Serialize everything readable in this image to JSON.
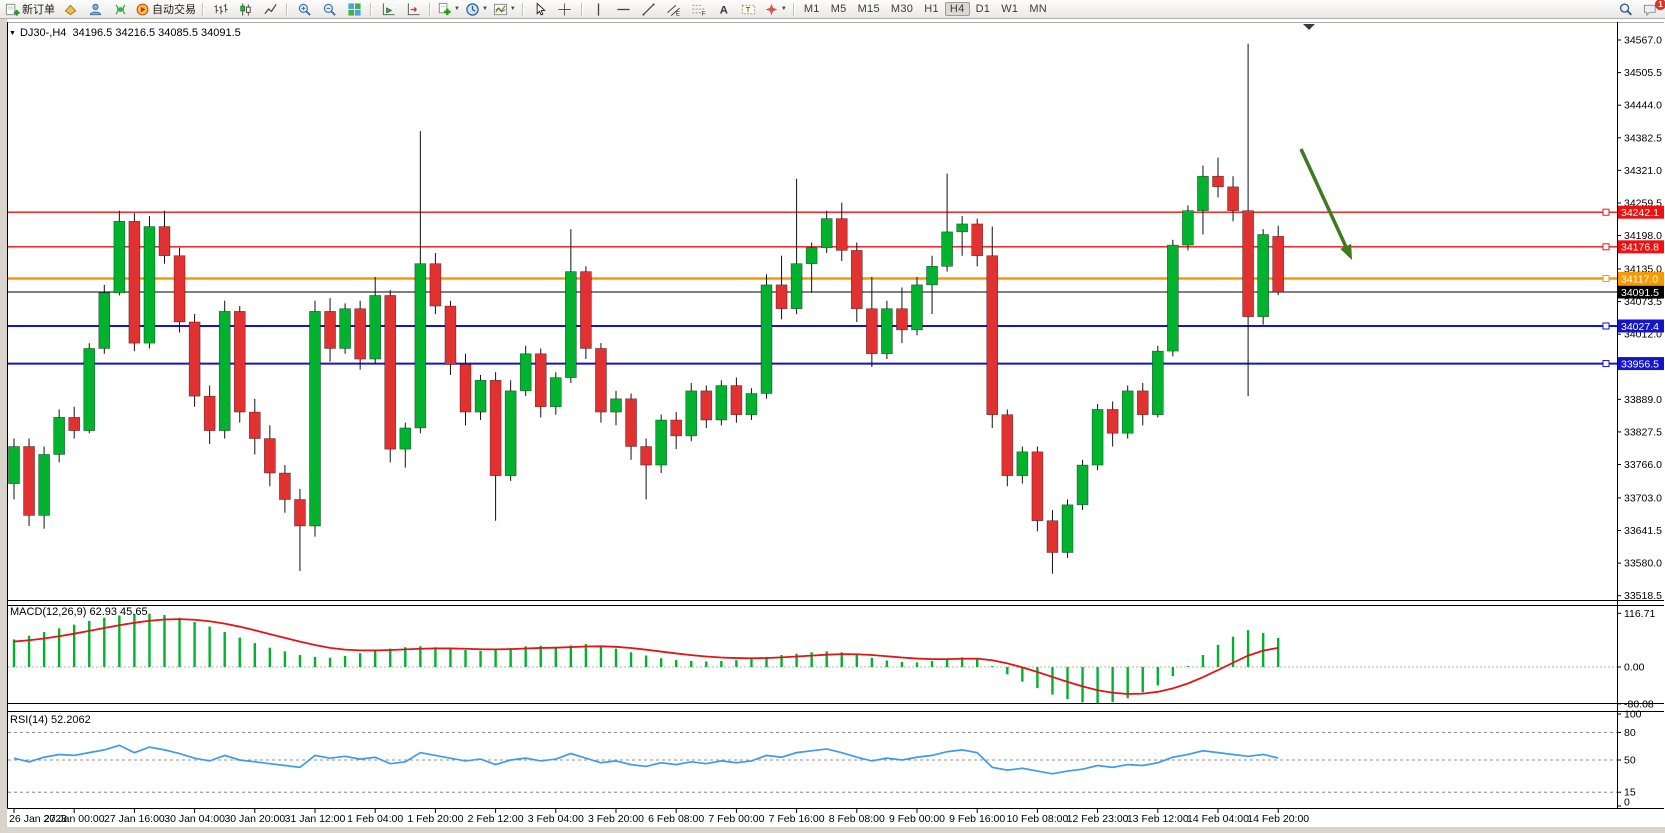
{
  "toolbar": {
    "notification_count": "1",
    "items": [
      {
        "type": "btn",
        "name": "new-order-button",
        "icon": "new-order",
        "label": "新订单"
      },
      {
        "type": "btn",
        "name": "market-watch-button",
        "icon": "market-watch"
      },
      {
        "type": "btn",
        "name": "navigator-button",
        "icon": "navigator"
      },
      {
        "type": "btn",
        "name": "signal-button",
        "icon": "signal"
      },
      {
        "type": "btn",
        "name": "autotrading-button",
        "icon": "autotrading",
        "label": "自动交易"
      },
      {
        "type": "sep"
      },
      {
        "type": "btn",
        "name": "bar-chart-button",
        "icon": "bar-chart"
      },
      {
        "type": "btn",
        "name": "candlestick-chart-button",
        "icon": "candlestick"
      },
      {
        "type": "btn",
        "name": "line-chart-button",
        "icon": "line-chart"
      },
      {
        "type": "sep"
      },
      {
        "type": "btn",
        "name": "zoom-in-button",
        "icon": "zoom-in"
      },
      {
        "type": "btn",
        "name": "zoom-out-button",
        "icon": "zoom-out"
      },
      {
        "type": "btn",
        "name": "tile-windows-button",
        "icon": "tile-windows"
      },
      {
        "type": "sep"
      },
      {
        "type": "btn",
        "name": "auto-scroll-button",
        "icon": "auto-scroll"
      },
      {
        "type": "btn",
        "name": "chart-shift-button",
        "icon": "chart-shift"
      },
      {
        "type": "sep"
      },
      {
        "type": "btn",
        "name": "indicators-button",
        "icon": "indicators",
        "caret": true
      },
      {
        "type": "btn",
        "name": "periods-button",
        "icon": "periods",
        "caret": true
      },
      {
        "type": "btn",
        "name": "templates-button",
        "icon": "templates",
        "caret": true
      },
      {
        "type": "sep"
      },
      {
        "type": "btn",
        "name": "cursor-button",
        "icon": "cursor"
      },
      {
        "type": "btn",
        "name": "crosshair-button",
        "icon": "crosshair"
      },
      {
        "type": "sep"
      },
      {
        "type": "btn",
        "name": "vertical-line-button",
        "icon": "vline"
      },
      {
        "type": "btn",
        "name": "horizontal-line-button",
        "icon": "hline"
      },
      {
        "type": "btn",
        "name": "trendline-button",
        "icon": "trendline"
      },
      {
        "type": "btn",
        "name": "equidistant-channel-button",
        "icon": "channel"
      },
      {
        "type": "btn",
        "name": "fibonacci-button",
        "icon": "fibo"
      },
      {
        "type": "btn",
        "name": "text-button",
        "icon": "text-a"
      },
      {
        "type": "btn",
        "name": "text-label-button",
        "icon": "text-label"
      },
      {
        "type": "btn",
        "name": "arrows-button",
        "icon": "arrows",
        "caret": true
      },
      {
        "type": "sep"
      },
      {
        "type": "tf",
        "label": "M1"
      },
      {
        "type": "tf",
        "label": "M5"
      },
      {
        "type": "tf",
        "label": "M15"
      },
      {
        "type": "tf",
        "label": "M30"
      },
      {
        "type": "tf",
        "label": "H1"
      },
      {
        "type": "tf",
        "label": "H4",
        "active": true
      },
      {
        "type": "tf",
        "label": "D1"
      },
      {
        "type": "tf",
        "label": "W1"
      },
      {
        "type": "tf",
        "label": "MN"
      },
      {
        "type": "spacer"
      },
      {
        "type": "btn",
        "name": "search-button",
        "icon": "search"
      },
      {
        "type": "btn",
        "name": "notifications-button",
        "icon": "notification",
        "badge": "1"
      }
    ]
  },
  "chart_data": {
    "type": "candlestick",
    "title": "DJ30-,H4",
    "title_caret": "▼",
    "title_ohlc": "34196.5 34216.5 34085.5 34091.5",
    "last_ohlc": {
      "open": 34196.5,
      "high": 34216.5,
      "low": 34085.5,
      "close": 34091.5
    },
    "last_price": 34091.5,
    "grid": false,
    "price_ticks": [
      34567.0,
      34505.5,
      34444.0,
      34382.5,
      34321.0,
      34259.5,
      34198.0,
      34135.0,
      34073.5,
      34012.0,
      33950.5,
      33889.0,
      33827.5,
      33766.0,
      33703.0,
      33641.5,
      33580.0,
      33518.5
    ],
    "time_labels": [
      "26 Jan 2023",
      "27 Jan 00:00",
      "27 Jan 16:00",
      "30 Jan 04:00",
      "30 Jan 20:00",
      "31 Jan 12:00",
      "1 Feb 04:00",
      "1 Feb 20:00",
      "2 Feb 12:00",
      "3 Feb 04:00",
      "3 Feb 20:00",
      "6 Feb 08:00",
      "7 Feb 00:00",
      "7 Feb 16:00",
      "8 Feb 08:00",
      "9 Feb 00:00",
      "9 Feb 16:00",
      "10 Feb 08:00",
      "12 Feb 23:00",
      "13 Feb 12:00",
      "14 Feb 04:00",
      "14 Feb 20:00"
    ],
    "candles_per_label": 4,
    "horizontal_lines": [
      {
        "price": 34242.1,
        "color": "#ee1111",
        "width": 1.4
      },
      {
        "price": 34176.8,
        "color": "#ee1111",
        "width": 1.4
      },
      {
        "price": 34117.0,
        "color": "#f59a00",
        "width": 2.4
      },
      {
        "price": 34027.4,
        "color": "#1414c8",
        "width": 2
      },
      {
        "price": 33956.5,
        "color": "#1414c8",
        "width": 2
      }
    ],
    "bid_line": {
      "price": 34091.5,
      "color": "#000000"
    },
    "annotation_arrow": {
      "from": [
        1301,
        149
      ],
      "to": [
        1352,
        260
      ],
      "color": "#3e7a1f"
    },
    "colors": {
      "up": "#00b22d",
      "down": "#e23131",
      "wick": "#111111",
      "axis_text": "#000000"
    },
    "candles": [
      [
        33730,
        33815,
        33700,
        33800
      ],
      [
        33800,
        33815,
        33650,
        33670
      ],
      [
        33670,
        33800,
        33645,
        33785
      ],
      [
        33785,
        33870,
        33770,
        33855
      ],
      [
        33855,
        33875,
        33815,
        33830
      ],
      [
        33830,
        33995,
        33825,
        33985
      ],
      [
        33985,
        34105,
        33975,
        34090
      ],
      [
        34090,
        34245,
        34085,
        34225
      ],
      [
        34225,
        34240,
        33980,
        33995
      ],
      [
        33995,
        34235,
        33985,
        34215
      ],
      [
        34215,
        34245,
        34145,
        34160
      ],
      [
        34160,
        34175,
        34015,
        34035
      ],
      [
        34035,
        34050,
        33875,
        33895
      ],
      [
        33895,
        33915,
        33805,
        33830
      ],
      [
        33830,
        34075,
        33815,
        34055
      ],
      [
        34055,
        34065,
        33845,
        33865
      ],
      [
        33865,
        33890,
        33785,
        33815
      ],
      [
        33815,
        33840,
        33725,
        33750
      ],
      [
        33750,
        33765,
        33675,
        33700
      ],
      [
        33700,
        33720,
        33565,
        33650
      ],
      [
        33650,
        34075,
        33630,
        34055
      ],
      [
        34055,
        34080,
        33960,
        33985
      ],
      [
        33985,
        34070,
        33975,
        34060
      ],
      [
        34060,
        34075,
        33945,
        33965
      ],
      [
        33965,
        34120,
        33955,
        34085
      ],
      [
        34085,
        34095,
        33770,
        33795
      ],
      [
        33795,
        33845,
        33760,
        33835
      ],
      [
        33835,
        34395,
        33825,
        34145
      ],
      [
        34145,
        34165,
        34050,
        34065
      ],
      [
        34065,
        34075,
        33935,
        33955
      ],
      [
        33955,
        33975,
        33840,
        33865
      ],
      [
        33865,
        33935,
        33850,
        33925
      ],
      [
        33925,
        33940,
        33660,
        33745
      ],
      [
        33745,
        33925,
        33735,
        33905
      ],
      [
        33905,
        33990,
        33895,
        33975
      ],
      [
        33975,
        33985,
        33855,
        33875
      ],
      [
        33875,
        33940,
        33860,
        33930
      ],
      [
        33930,
        34210,
        33920,
        34130
      ],
      [
        34130,
        34140,
        33965,
        33985
      ],
      [
        33985,
        33995,
        33845,
        33865
      ],
      [
        33865,
        33905,
        33840,
        33890
      ],
      [
        33890,
        33900,
        33775,
        33800
      ],
      [
        33800,
        33815,
        33700,
        33765
      ],
      [
        33765,
        33860,
        33750,
        33850
      ],
      [
        33850,
        33865,
        33795,
        33820
      ],
      [
        33820,
        33920,
        33810,
        33905
      ],
      [
        33905,
        33915,
        33835,
        33850
      ],
      [
        33850,
        33925,
        33840,
        33915
      ],
      [
        33915,
        33930,
        33845,
        33860
      ],
      [
        33860,
        33910,
        33850,
        33900
      ],
      [
        33900,
        34125,
        33890,
        34105
      ],
      [
        34105,
        34160,
        34040,
        34060
      ],
      [
        34060,
        34305,
        34050,
        34145
      ],
      [
        34145,
        34185,
        34090,
        34175
      ],
      [
        34175,
        34245,
        34165,
        34230
      ],
      [
        34230,
        34260,
        34150,
        34170
      ],
      [
        34170,
        34185,
        34035,
        34060
      ],
      [
        34060,
        34120,
        33950,
        33975
      ],
      [
        33975,
        34075,
        33965,
        34060
      ],
      [
        34060,
        34100,
        33995,
        34020
      ],
      [
        34020,
        34120,
        34010,
        34105
      ],
      [
        34105,
        34160,
        34050,
        34140
      ],
      [
        34140,
        34315,
        34130,
        34205
      ],
      [
        34205,
        34235,
        34160,
        34220
      ],
      [
        34220,
        34230,
        34140,
        34160
      ],
      [
        34160,
        34215,
        33835,
        33860
      ],
      [
        33860,
        33870,
        33725,
        33745
      ],
      [
        33745,
        33800,
        33730,
        33790
      ],
      [
        33790,
        33800,
        33640,
        33660
      ],
      [
        33660,
        33680,
        33560,
        33600
      ],
      [
        33600,
        33700,
        33590,
        33690
      ],
      [
        33690,
        33775,
        33680,
        33765
      ],
      [
        33765,
        33880,
        33755,
        33870
      ],
      [
        33870,
        33885,
        33800,
        33825
      ],
      [
        33825,
        33915,
        33815,
        33905
      ],
      [
        33905,
        33920,
        33840,
        33860
      ],
      [
        33860,
        33990,
        33855,
        33980
      ],
      [
        33980,
        34190,
        33970,
        34180
      ],
      [
        34180,
        34255,
        34170,
        34245
      ],
      [
        34245,
        34330,
        34200,
        34310
      ],
      [
        34310,
        34345,
        34270,
        34290
      ],
      [
        34290,
        34310,
        34225,
        34245
      ],
      [
        34245,
        34560,
        33895,
        34045
      ],
      [
        34045,
        34210,
        34030,
        34200
      ],
      [
        34196.5,
        34216.5,
        34085.5,
        34091.5
      ]
    ],
    "indicators": [
      {
        "name": "MACD",
        "label": "MACD(12,26,9) 62.93 45.65",
        "params": "12,26,9",
        "main_value": 62.93,
        "signal_value": 45.65,
        "axis_ticks": [
          "116.71",
          "0.00",
          "-80.08"
        ],
        "histogram_color": "#00b22d",
        "signal_color": "#e01616",
        "histogram": [
          60,
          68,
          76,
          84,
          92,
          100,
          107,
          112,
          115,
          116,
          113,
          107,
          98,
          88,
          76,
          64,
          52,
          42,
          34,
          26,
          22,
          20,
          24,
          30,
          36,
          40,
          43,
          45,
          43,
          40,
          37,
          35,
          37,
          41,
          45,
          46,
          44,
          47,
          50,
          46,
          40,
          32,
          25,
          19,
          15,
          13,
          12,
          13,
          15,
          17,
          22,
          26,
          29,
          32,
          34,
          32,
          27,
          20,
          14,
          11,
          10,
          13,
          17,
          21,
          19,
          2,
          -16,
          -32,
          -46,
          -60,
          -70,
          -77,
          -80,
          -76,
          -68,
          -55,
          -40,
          -20,
          2,
          26,
          48,
          66,
          80,
          74,
          63
        ]
      },
      {
        "name": "RSI",
        "label": "RSI(14) 52.2062",
        "params": "14",
        "value": 52.2062,
        "axis_ticks": [
          "100",
          "80",
          "50",
          "15",
          "0"
        ],
        "levels": [
          80,
          50,
          15
        ],
        "line_color": "#3e9bea",
        "values": [
          52,
          48,
          53,
          56,
          55,
          58,
          61,
          66,
          58,
          64,
          61,
          57,
          52,
          49,
          55,
          50,
          48,
          46,
          44,
          42,
          55,
          52,
          54,
          51,
          53,
          46,
          48,
          58,
          55,
          52,
          49,
          51,
          45,
          50,
          52,
          49,
          51,
          57,
          52,
          47,
          49,
          45,
          43,
          47,
          45,
          48,
          46,
          49,
          47,
          49,
          55,
          53,
          58,
          60,
          62,
          58,
          53,
          49,
          52,
          50,
          53,
          55,
          59,
          61,
          58,
          42,
          39,
          41,
          38,
          35,
          38,
          40,
          44,
          42,
          45,
          44,
          47,
          53,
          56,
          60,
          58,
          56,
          54,
          56,
          52.2
        ]
      }
    ]
  }
}
